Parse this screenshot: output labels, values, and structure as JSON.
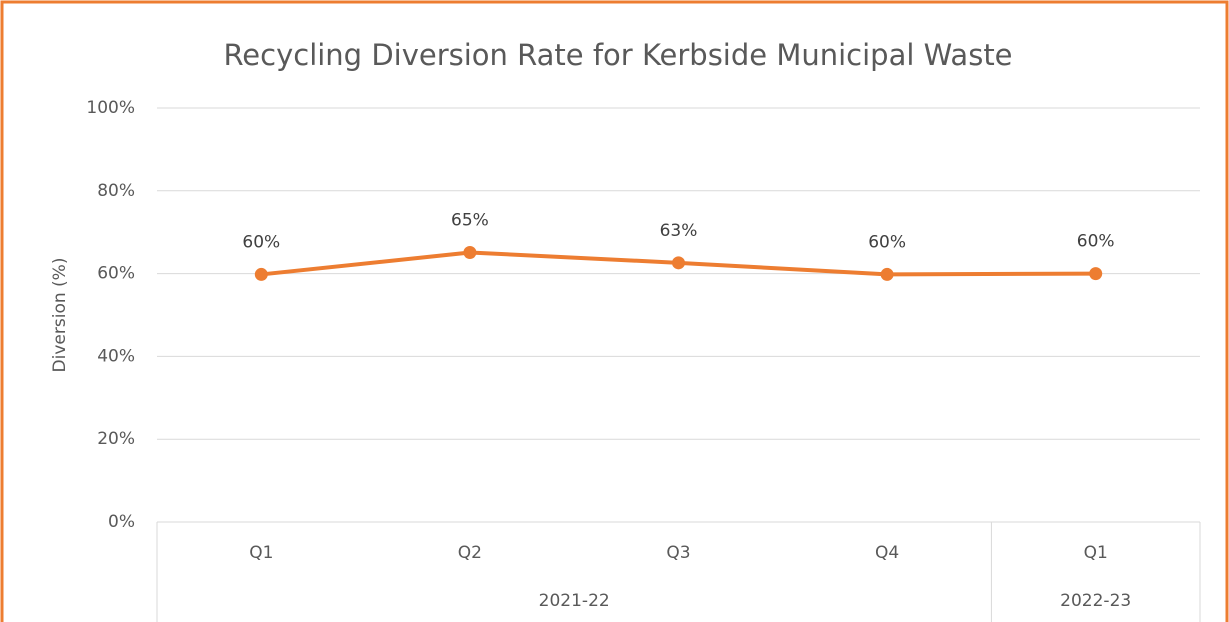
{
  "chart_data": {
    "type": "line",
    "title": "Recycling Diversion Rate for Kerbside Municipal Waste",
    "y_label": "Diversion (%)",
    "categories": [
      "Q1",
      "Q2",
      "Q3",
      "Q4",
      "Q1"
    ],
    "x_groups": [
      {
        "label": "2021-22",
        "count": 4
      },
      {
        "label": "2022-23",
        "count": 1
      }
    ],
    "series": [
      {
        "name": "Diversion",
        "color": "#ed7d31",
        "values": [
          59.8,
          65.1,
          62.6,
          59.8,
          60.0
        ],
        "value_labels": [
          "60%",
          "65%",
          "63%",
          "60%",
          "60%"
        ]
      }
    ],
    "ylim": [
      0,
      100
    ],
    "yticks": [
      {
        "value": 0,
        "label": "0%"
      },
      {
        "value": 20,
        "label": "20%"
      },
      {
        "value": 40,
        "label": "40%"
      },
      {
        "value": 60,
        "label": "60%"
      },
      {
        "value": 80,
        "label": "80%"
      },
      {
        "value": 100,
        "label": "100%"
      }
    ],
    "grid": true
  }
}
